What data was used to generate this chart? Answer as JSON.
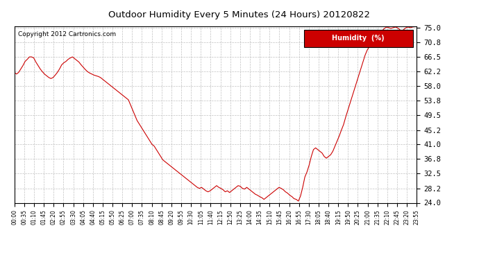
{
  "title": "Outdoor Humidity Every 5 Minutes (24 Hours) 20120822",
  "copyright": "Copyright 2012 Cartronics.com",
  "legend_label": "Humidity  (%)",
  "legend_bg": "#cc0000",
  "legend_text_color": "#ffffff",
  "line_color": "#cc0000",
  "background_color": "#ffffff",
  "grid_color": "#c0c0c0",
  "ylim": [
    24.0,
    75.5
  ],
  "yticks": [
    24.0,
    28.2,
    32.5,
    36.8,
    41.0,
    45.2,
    49.5,
    53.8,
    58.0,
    62.2,
    66.5,
    70.8,
    75.0
  ],
  "xtick_labels": [
    "00:00",
    "00:35",
    "01:10",
    "01:45",
    "02:20",
    "02:55",
    "03:30",
    "04:05",
    "04:40",
    "05:15",
    "05:50",
    "06:25",
    "07:00",
    "07:35",
    "08:10",
    "08:45",
    "09:20",
    "09:55",
    "10:30",
    "11:05",
    "11:40",
    "12:15",
    "12:50",
    "13:25",
    "14:00",
    "14:35",
    "15:10",
    "15:45",
    "16:20",
    "16:55",
    "17:30",
    "18:05",
    "18:40",
    "19:15",
    "19:50",
    "20:25",
    "21:00",
    "21:35",
    "22:10",
    "22:45",
    "23:20",
    "23:55"
  ],
  "humidity_values": [
    62.0,
    61.5,
    62.0,
    63.0,
    64.0,
    65.2,
    65.8,
    66.5,
    66.5,
    66.2,
    65.0,
    64.0,
    63.0,
    62.2,
    61.5,
    61.0,
    60.5,
    60.2,
    60.5,
    61.2,
    62.0,
    63.0,
    64.2,
    64.8,
    65.2,
    65.8,
    66.2,
    66.5,
    66.0,
    65.5,
    65.0,
    64.2,
    63.5,
    62.8,
    62.2,
    61.8,
    61.5,
    61.2,
    61.0,
    60.8,
    60.5,
    60.0,
    59.5,
    59.0,
    58.5,
    58.0,
    57.5,
    57.0,
    56.5,
    56.0,
    55.5,
    55.0,
    54.5,
    54.0,
    52.5,
    51.0,
    49.5,
    48.0,
    47.0,
    46.0,
    45.0,
    44.0,
    43.0,
    42.0,
    41.0,
    40.5,
    39.5,
    38.5,
    37.5,
    36.5,
    36.0,
    35.5,
    35.0,
    34.5,
    34.0,
    33.5,
    33.0,
    32.5,
    32.0,
    31.5,
    31.0,
    30.5,
    30.0,
    29.5,
    29.0,
    28.5,
    28.2,
    28.5,
    28.0,
    27.5,
    27.2,
    27.5,
    28.0,
    28.5,
    29.0,
    28.5,
    28.2,
    27.8,
    27.2,
    27.5,
    27.0,
    27.5,
    28.0,
    28.5,
    29.0,
    28.8,
    28.2,
    28.0,
    28.5,
    28.0,
    27.5,
    27.0,
    26.5,
    26.2,
    25.8,
    25.5,
    25.0,
    25.5,
    26.0,
    26.5,
    27.0,
    27.5,
    28.0,
    28.5,
    28.2,
    27.8,
    27.2,
    26.8,
    26.2,
    25.8,
    25.2,
    25.0,
    24.5,
    26.0,
    28.5,
    31.5,
    33.0,
    35.0,
    37.5,
    39.5,
    40.0,
    39.5,
    39.0,
    38.5,
    37.5,
    37.0,
    37.5,
    38.0,
    39.0,
    40.5,
    42.0,
    43.5,
    45.2,
    46.8,
    49.0,
    51.0,
    53.0,
    55.0,
    57.0,
    59.0,
    61.0,
    63.0,
    65.0,
    67.0,
    68.5,
    69.5,
    70.5,
    71.5,
    72.5,
    73.2,
    73.8,
    74.2,
    74.8,
    75.2,
    75.0,
    74.8,
    75.0,
    75.2,
    75.0,
    74.5,
    74.0,
    74.5,
    75.0,
    75.2,
    75.0,
    75.2,
    75.3,
    75.3
  ]
}
